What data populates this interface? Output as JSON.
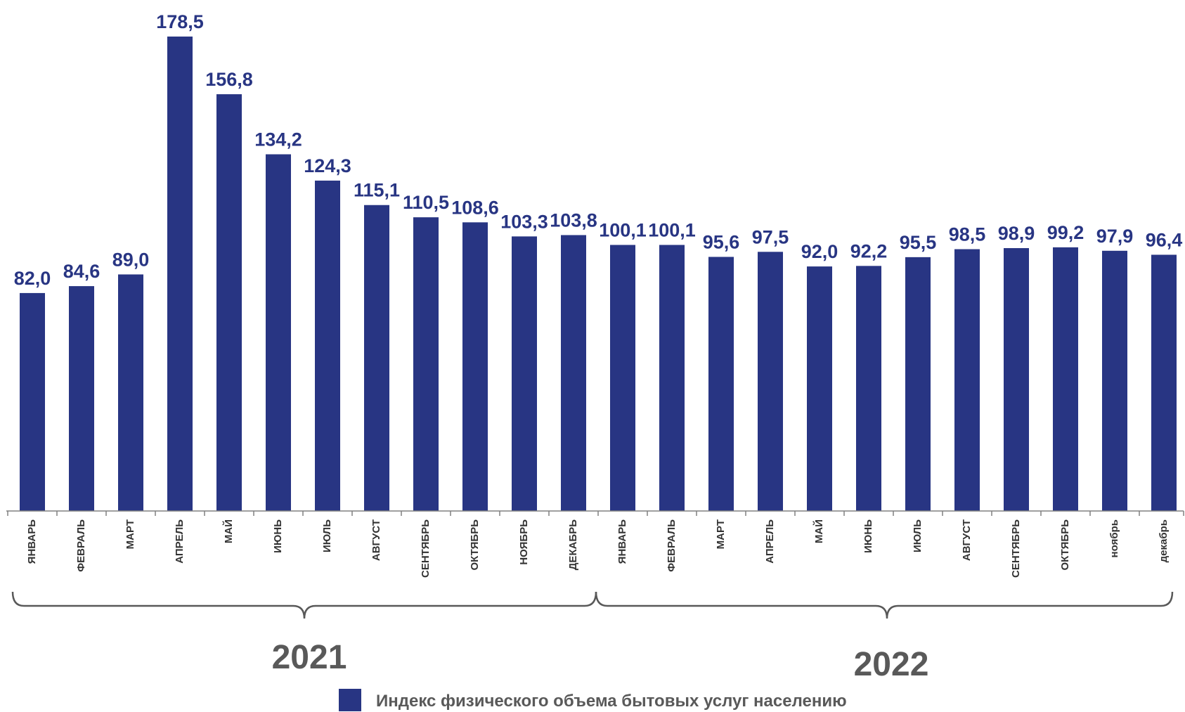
{
  "chart_data": {
    "type": "bar",
    "title": "",
    "xlabel": "",
    "ylabel": "",
    "ylim": [
      0,
      178.5
    ],
    "grid": false,
    "legend_position": "bottom",
    "categories": [
      "ЯНВАРЬ",
      "ФЕВРАЛЬ",
      "МАРТ",
      "АПРЕЛЬ",
      "МАЙ",
      "ИЮНЬ",
      "ИЮЛЬ",
      "АВГУСТ",
      "СЕНТЯБРЬ",
      "ОКТЯБРЬ",
      "НОЯБРЬ",
      "ДЕКАБРЬ",
      "ЯНВАРЬ",
      "ФЕВРАЛЬ",
      "МАРТ",
      "АПРЕЛЬ",
      "МАЙ",
      "ИЮНЬ",
      "ИЮЛЬ",
      "АВГУСТ",
      "СЕНТЯБРЬ",
      "ОКТЯБРЬ",
      "ноябрь",
      "декабрь"
    ],
    "series": [
      {
        "name": "Индекс физического объема бытовых услуг населению",
        "color": "#283583",
        "values": [
          82.0,
          84.6,
          89.0,
          178.5,
          156.8,
          134.2,
          124.3,
          115.1,
          110.5,
          108.6,
          103.3,
          103.8,
          100.1,
          100.1,
          95.6,
          97.5,
          92.0,
          92.2,
          95.5,
          98.5,
          98.9,
          99.2,
          97.9,
          96.4
        ],
        "labels": [
          "82,0",
          "84,6",
          "89,0",
          "178,5",
          "156,8",
          "134,2",
          "124,3",
          "115,1",
          "110,5",
          "108,6",
          "103,3",
          "103,8",
          "100,1",
          "100,1",
          "95,6",
          "97,5",
          "92,0",
          "92,2",
          "95,5",
          "98,5",
          "98,9",
          "99,2",
          "97,9",
          "96,4"
        ]
      }
    ],
    "groups": [
      {
        "label": "2021",
        "start_index": 0,
        "end_index": 11
      },
      {
        "label": "2022",
        "start_index": 12,
        "end_index": 23
      }
    ]
  },
  "legend": {
    "label": "Индекс физического объема бытовых услуг населению",
    "color": "#283583"
  },
  "colors": {
    "axis": "#808080",
    "brace": "#595959"
  }
}
